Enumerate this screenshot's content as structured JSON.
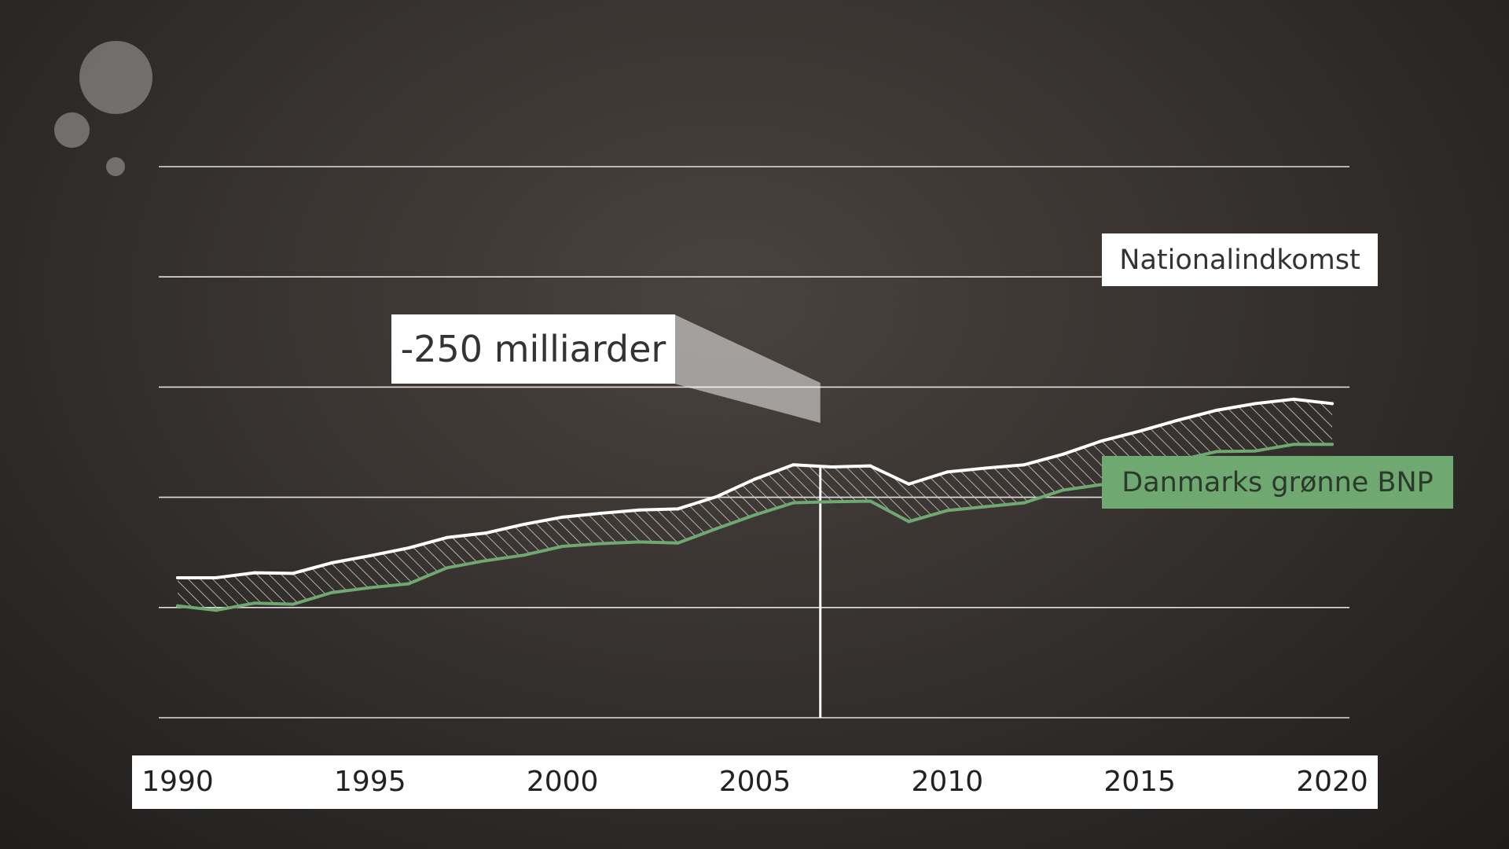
{
  "chart_data": {
    "type": "area",
    "years": [
      1990,
      1991,
      1992,
      1993,
      1994,
      1995,
      1996,
      1997,
      1998,
      1999,
      2000,
      2001,
      2002,
      2003,
      2004,
      2005,
      2006,
      2007,
      2008,
      2009,
      2010,
      2011,
      2012,
      2013,
      2014,
      2015,
      2016,
      2017,
      2018,
      2019,
      2020
    ],
    "series": [
      {
        "name": "Nationalindkomst",
        "color": "#ffffff",
        "values": [
          2.54,
          2.54,
          2.63,
          2.62,
          2.81,
          2.94,
          3.08,
          3.27,
          3.35,
          3.51,
          3.64,
          3.71,
          3.77,
          3.79,
          4.01,
          4.33,
          4.59,
          4.55,
          4.57,
          4.24,
          4.46,
          4.53,
          4.59,
          4.78,
          5.02,
          5.2,
          5.4,
          5.58,
          5.7,
          5.78,
          5.7
        ]
      },
      {
        "name": "Danmarks grønne BNP",
        "color": "#6fa870",
        "values": [
          2.03,
          1.95,
          2.08,
          2.06,
          2.27,
          2.36,
          2.43,
          2.72,
          2.85,
          2.95,
          3.11,
          3.16,
          3.19,
          3.17,
          3.43,
          3.68,
          3.9,
          3.92,
          3.93,
          3.56,
          3.76,
          3.83,
          3.9,
          4.13,
          4.23,
          4.5,
          4.67,
          4.83,
          4.84,
          4.96,
          4.96
        ]
      }
    ],
    "xticks": [
      1990,
      1995,
      2000,
      2005,
      2010,
      2015,
      2020
    ],
    "xlim": [
      1990,
      2020
    ],
    "ylim": [
      0,
      10
    ],
    "grid": true,
    "annotation": {
      "text": "-250 milliarder",
      "x": 2006.7
    },
    "colors": {
      "hatch": "#cfcfcf",
      "grid": "#ffffff",
      "accent_green": "#6fa870"
    }
  }
}
